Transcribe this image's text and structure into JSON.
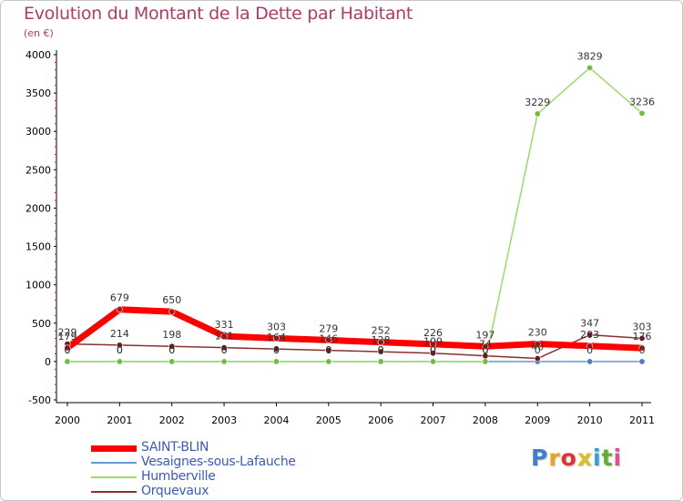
{
  "title": "Evolution du Montant de la Dette par Habitant",
  "subtitle": "(en €)",
  "logo": {
    "text": "Proxiti"
  },
  "colors": {
    "title": "#b03a69",
    "axis": "#000000",
    "grid_tick": "#c02030",
    "legend_text": "#3a5bbf"
  },
  "chart_data": {
    "type": "line",
    "title": "Evolution du Montant de la Dette par Habitant",
    "subtitle": "(en €)",
    "xlabel": "",
    "ylabel": "",
    "categories": [
      "2000",
      "2001",
      "2002",
      "2003",
      "2004",
      "2005",
      "2006",
      "2007",
      "2008",
      "2009",
      "2010",
      "2011"
    ],
    "ylim": [
      -500,
      4000
    ],
    "yticks": [
      -500,
      0,
      500,
      1000,
      1500,
      2000,
      2500,
      3000,
      3500,
      4000
    ],
    "grid": false,
    "legend_position": "bottom-left",
    "series": [
      {
        "name": "SAINT-BLIN",
        "color": "#ff0000",
        "values": [
          179,
          679,
          650,
          331,
          303,
          279,
          252,
          226,
          197,
          230,
          203,
          176
        ],
        "labels": [
          "179",
          "679",
          "650",
          "331",
          "303",
          "279",
          "252",
          "226",
          "197",
          "230",
          "203",
          "176"
        ]
      },
      {
        "name": "Vesaignes-sous-Lafauche",
        "color": "#6699cc",
        "values": [
          0,
          0,
          0,
          0,
          0,
          0,
          0,
          0,
          0,
          0,
          0,
          0
        ],
        "labels": [
          "0",
          "0",
          "0",
          "0",
          "0",
          "0",
          "0",
          "0",
          "0",
          "0",
          "0",
          "0"
        ]
      },
      {
        "name": "Humberville",
        "color": "#99dd66",
        "values": [
          0,
          0,
          0,
          0,
          0,
          0,
          0,
          0,
          0,
          3229,
          3829,
          3236
        ],
        "labels": [
          "0",
          "0",
          "0",
          "0",
          "0",
          "0",
          "0",
          "0",
          "0",
          "3229",
          "3829",
          "3236"
        ]
      },
      {
        "name": "Orquevaux",
        "color": "#8b3030",
        "values": [
          229,
          214,
          198,
          181,
          164,
          146,
          128,
          109,
          74,
          40,
          347,
          303
        ],
        "labels": [
          "229",
          "214",
          "198",
          "181",
          "164",
          "146",
          "128",
          "109",
          "74",
          "40",
          "347",
          "303"
        ]
      }
    ]
  }
}
